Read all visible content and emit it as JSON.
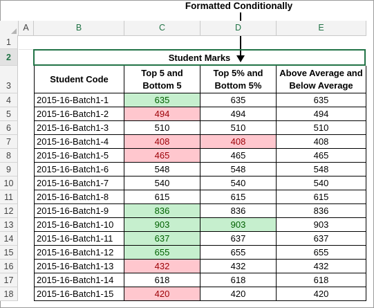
{
  "callout": {
    "text": "Formatted Conditionally"
  },
  "columns": [
    "A",
    "B",
    "C",
    "D",
    "E"
  ],
  "title": "Student Marks",
  "headers": {
    "student_code": "Student Code",
    "top5_bottom5": "Top 5 and Bottom 5",
    "top5pct_bottom5pct": "Top 5% and Bottom 5%",
    "above_below_avg": "Above Average and Below Average"
  },
  "rows": [
    {
      "row": "4",
      "code": "2015-16-Batch1-1",
      "c": "635",
      "c_fmt": "green",
      "d": "635",
      "d_fmt": "",
      "e": "635"
    },
    {
      "row": "5",
      "code": "2015-16-Batch1-2",
      "c": "494",
      "c_fmt": "red",
      "d": "494",
      "d_fmt": "",
      "e": "494"
    },
    {
      "row": "6",
      "code": "2015-16-Batch1-3",
      "c": "510",
      "c_fmt": "",
      "d": "510",
      "d_fmt": "",
      "e": "510"
    },
    {
      "row": "7",
      "code": "2015-16-Batch1-4",
      "c": "408",
      "c_fmt": "red",
      "d": "408",
      "d_fmt": "red",
      "e": "408"
    },
    {
      "row": "8",
      "code": "2015-16-Batch1-5",
      "c": "465",
      "c_fmt": "red",
      "d": "465",
      "d_fmt": "",
      "e": "465"
    },
    {
      "row": "9",
      "code": "2015-16-Batch1-6",
      "c": "548",
      "c_fmt": "",
      "d": "548",
      "d_fmt": "",
      "e": "548"
    },
    {
      "row": "10",
      "code": "2015-16-Batch1-7",
      "c": "540",
      "c_fmt": "",
      "d": "540",
      "d_fmt": "",
      "e": "540"
    },
    {
      "row": "11",
      "code": "2015-16-Batch1-8",
      "c": "615",
      "c_fmt": "",
      "d": "615",
      "d_fmt": "",
      "e": "615"
    },
    {
      "row": "12",
      "code": "2015-16-Batch1-9",
      "c": "836",
      "c_fmt": "green",
      "d": "836",
      "d_fmt": "",
      "e": "836"
    },
    {
      "row": "13",
      "code": "2015-16-Batch1-10",
      "c": "903",
      "c_fmt": "green",
      "d": "903",
      "d_fmt": "green",
      "e": "903"
    },
    {
      "row": "14",
      "code": "2015-16-Batch1-11",
      "c": "637",
      "c_fmt": "green",
      "d": "637",
      "d_fmt": "",
      "e": "637"
    },
    {
      "row": "15",
      "code": "2015-16-Batch1-12",
      "c": "655",
      "c_fmt": "green",
      "d": "655",
      "d_fmt": "",
      "e": "655"
    },
    {
      "row": "16",
      "code": "2015-16-Batch1-13",
      "c": "432",
      "c_fmt": "red",
      "d": "432",
      "d_fmt": "",
      "e": "432"
    },
    {
      "row": "17",
      "code": "2015-16-Batch1-14",
      "c": "618",
      "c_fmt": "",
      "d": "618",
      "d_fmt": "",
      "e": "618"
    },
    {
      "row": "18",
      "code": "2015-16-Batch1-15",
      "c": "420",
      "c_fmt": "red",
      "d": "420",
      "d_fmt": "",
      "e": "420"
    }
  ],
  "row_numbers_top": [
    "1",
    "2",
    "3"
  ],
  "colors": {
    "accent": "#217346",
    "good_fill": "#c6efce",
    "good_text": "#006100",
    "bad_fill": "#ffc7ce",
    "bad_text": "#9c0006"
  }
}
